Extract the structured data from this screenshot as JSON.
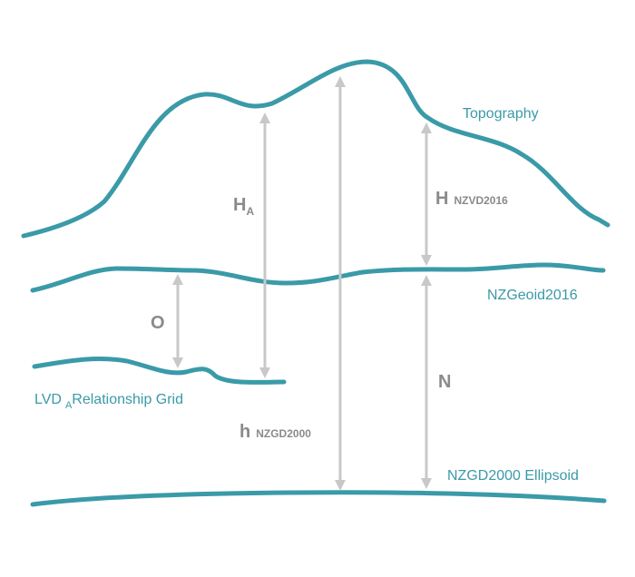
{
  "surfaces": {
    "topography": "Topography",
    "geoid": "NZGeoid2016",
    "ellipsoid": "NZGD2000 Ellipsoid",
    "lvd_prefix": "LVD",
    "lvd_subscript": "A",
    "lvd_suffix": "Relationship Grid"
  },
  "quantities": {
    "ha_symbol": "H",
    "ha_subscript": "A",
    "h_nzvd_symbol": "H",
    "h_nzvd_subscript": "NZVD2016",
    "o_symbol": "O",
    "n_symbol": "N",
    "h_ell_symbol": "h",
    "h_ell_subscript": "NZGD2000"
  },
  "colors": {
    "surface": "#3a9aa8",
    "measure": "#c8c8c8",
    "symbol_text": "#8a8a8a"
  }
}
